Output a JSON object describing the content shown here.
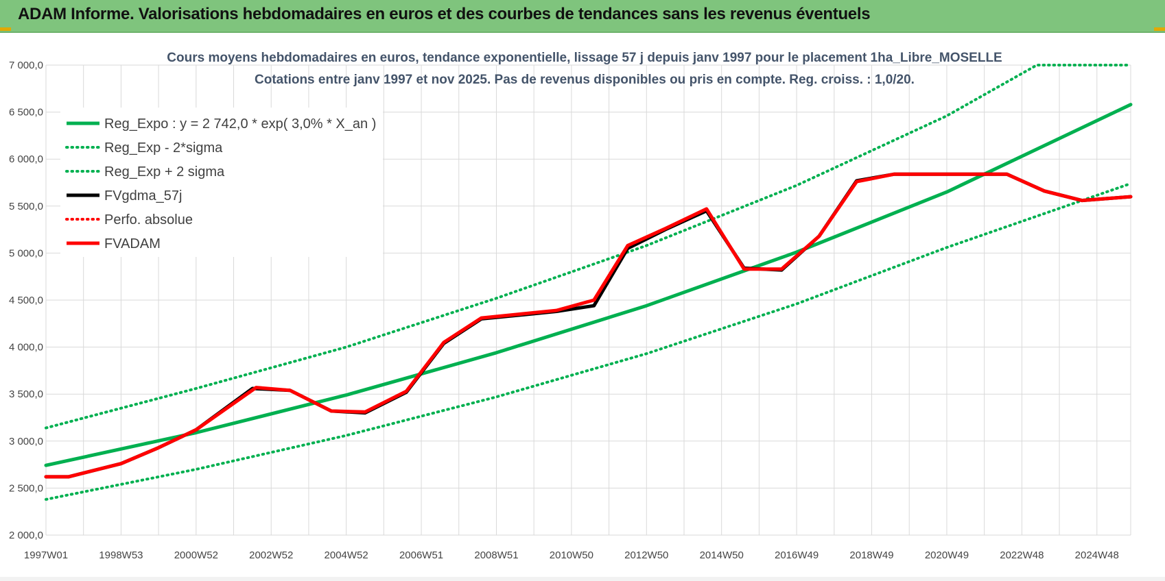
{
  "header": {
    "title": "ADAM Informe. Valorisations hebdomadaires en euros et des courbes de tendances sans les revenus éventuels",
    "background": "#7fc47d"
  },
  "chart_data": {
    "type": "line",
    "title_line1": "Cours moyens hebdomadaires en euros, tendance exponentielle, lissage 57 j depuis janv 1997  pour le  placement 1ha_Libre_MOSELLE",
    "title_line2": "Cotations entre janv 1997 et nov 2025. Pas de revenus disponibles ou pris en compte. Reg. croiss. : 1,0/20.",
    "xlabel": "",
    "ylabel": "",
    "x_range": [
      1997.0,
      2025.9
    ],
    "ylim": [
      2000,
      7000
    ],
    "y_ticks": [
      2000,
      2500,
      3000,
      3500,
      4000,
      4500,
      5000,
      5500,
      6000,
      6500,
      7000
    ],
    "y_tick_labels": [
      "2 000,0",
      "2 500,0",
      "3 000,0",
      "3 500,0",
      "4 000,0",
      "4 500,0",
      "5 000,0",
      "5 500,0",
      "6 000,0",
      "6 500,0",
      "7 000,0"
    ],
    "x_tick_positions": [
      1997.0,
      1999.0,
      2001.0,
      2003.0,
      2005.0,
      2007.0,
      2009.0,
      2011.0,
      2013.0,
      2015.0,
      2017.0,
      2019.0,
      2021.0,
      2023.0,
      2025.0
    ],
    "x_tick_labels": [
      "1997W01",
      "1998W53",
      "2000W52",
      "2002W52",
      "2004W52",
      "2006W51",
      "2008W51",
      "2010W50",
      "2012W50",
      "2014W50",
      "2016W49",
      "2018W49",
      "2020W49",
      "2022W48",
      "2024W48"
    ],
    "grid": true,
    "legend_position": "top-left",
    "series": [
      {
        "name": "Reg_Expo : y = 2 742,0 * exp( 3,0% *  X_an )",
        "style": "solid",
        "color": "#00b050",
        "x": [
          1997.0,
          2001.0,
          2005.0,
          2009.0,
          2013.0,
          2017.0,
          2021.0,
          2025.9
        ],
        "values": [
          2742,
          3090,
          3490,
          3940,
          4440,
          5010,
          5650,
          6580
        ]
      },
      {
        "name": "Reg_Exp - 2*sigma",
        "style": "dotted",
        "color": "#00b050",
        "x": [
          1997.0,
          2001.0,
          2005.0,
          2009.0,
          2013.0,
          2017.0,
          2021.0,
          2025.9
        ],
        "values": [
          2380,
          2700,
          3060,
          3470,
          3930,
          4460,
          5060,
          5740
        ]
      },
      {
        "name": "Reg_Exp + 2 sigma",
        "style": "dotted",
        "color": "#00b050",
        "x": [
          1997.0,
          2001.0,
          2005.0,
          2009.0,
          2013.0,
          2017.0,
          2021.0,
          2023.4,
          2025.9
        ],
        "values": [
          3140,
          3560,
          4000,
          4520,
          5080,
          5720,
          6460,
          7000,
          7000
        ]
      },
      {
        "name": "FVgdma_57j",
        "style": "solid",
        "color": "#000000",
        "x": [
          1997.0,
          1997.6,
          1999.0,
          2000.0,
          2001.0,
          2002.5,
          2003.5,
          2004.6,
          2005.5,
          2006.6,
          2007.6,
          2008.6,
          2009.6,
          2010.6,
          2011.6,
          2012.5,
          2013.5,
          2014.6,
          2015.6,
          2016.6,
          2017.6,
          2018.6,
          2019.6,
          2020.6,
          2022.6,
          2023.6,
          2024.6,
          2025.9
        ],
        "values": [
          2620,
          2620,
          2760,
          2930,
          3120,
          3560,
          3540,
          3320,
          3300,
          3520,
          4040,
          4300,
          4340,
          4380,
          4440,
          5050,
          5250,
          5450,
          4840,
          4820,
          5180,
          5770,
          5840,
          5840,
          5840,
          5660,
          5560,
          5600
        ]
      },
      {
        "name": "Perfo. absolue",
        "style": "dotted",
        "color": "#ff0000",
        "x": [],
        "values": []
      },
      {
        "name": "FVADAM",
        "style": "solid",
        "color": "#ff0000",
        "x": [
          1997.0,
          1997.6,
          1999.0,
          2000.0,
          2001.0,
          2002.6,
          2003.5,
          2004.6,
          2005.5,
          2006.6,
          2007.6,
          2008.6,
          2009.6,
          2010.6,
          2011.6,
          2012.5,
          2013.5,
          2014.6,
          2015.6,
          2016.6,
          2017.6,
          2018.6,
          2019.6,
          2020.6,
          2022.6,
          2023.6,
          2024.6,
          2025.9
        ],
        "values": [
          2620,
          2620,
          2760,
          2930,
          3120,
          3570,
          3540,
          3320,
          3310,
          3530,
          4050,
          4310,
          4350,
          4390,
          4500,
          5080,
          5260,
          5470,
          4830,
          4830,
          5180,
          5760,
          5840,
          5840,
          5840,
          5660,
          5560,
          5600
        ]
      }
    ]
  }
}
